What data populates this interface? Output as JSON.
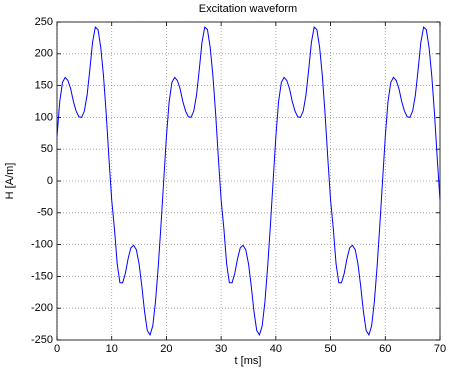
{
  "chart_data": {
    "type": "line",
    "title": "Excitation waveform",
    "x_label": "t [ms]",
    "y_label": "H [A/m]",
    "x": [
      0,
      0.5,
      1,
      1.5,
      2,
      2.5,
      3,
      3.5,
      4,
      4.5,
      5,
      5.5,
      6,
      6.5,
      7,
      7.5,
      8,
      8.5,
      9,
      9.5,
      10,
      10.5,
      11,
      11.5,
      12,
      12.5,
      13,
      13.5,
      14,
      14.5,
      15,
      15.5,
      16,
      16.5,
      17,
      17.5,
      18,
      18.5,
      19,
      19.5,
      20,
      20.5,
      21,
      21.5,
      22,
      22.5,
      23,
      23.5,
      24,
      24.5,
      25,
      25.5,
      26,
      26.5,
      27,
      27.5,
      28,
      28.5,
      29,
      29.5,
      30,
      30.5,
      31,
      31.5,
      32,
      32.5,
      33,
      33.5,
      34,
      34.5,
      35,
      35.5,
      36,
      36.5,
      37,
      37.5,
      38,
      38.5,
      39,
      39.5,
      40,
      40.5,
      41,
      41.5,
      42,
      42.5,
      43,
      43.5,
      44,
      44.5,
      45,
      45.5,
      46,
      46.5,
      47,
      47.5,
      48,
      48.5,
      49,
      49.5,
      50,
      50.5,
      51,
      51.5,
      52,
      52.5,
      53,
      53.5,
      54,
      54.5,
      55,
      55.5,
      56,
      56.5,
      57,
      57.5,
      58,
      58.5,
      59,
      59.5,
      60,
      60.5,
      61,
      61.5,
      62,
      62.5,
      63,
      63.5,
      64,
      64.5,
      65,
      65.5,
      66,
      66.5,
      67,
      67.5,
      68,
      68.5,
      69,
      69.5,
      70
    ],
    "series": [
      {
        "color": "#0000ff",
        "values": [
          70,
          125,
          155,
          163,
          158,
          145,
          125,
          110,
          101,
          100,
          110,
          135,
          175,
          218,
          242,
          238,
          210,
          165,
          105,
          35,
          -30,
          -75,
          -130,
          -160,
          -160,
          -145,
          -122,
          -105,
          -101,
          -108,
          -130,
          -165,
          -205,
          -235,
          -242,
          -228,
          -190,
          -135,
          -70,
          0,
          70,
          125,
          155,
          163,
          158,
          145,
          125,
          110,
          101,
          100,
          110,
          135,
          175,
          218,
          242,
          238,
          210,
          165,
          105,
          35,
          -30,
          -75,
          -130,
          -160,
          -160,
          -145,
          -122,
          -105,
          -101,
          -108,
          -130,
          -165,
          -205,
          -235,
          -242,
          -228,
          -190,
          -135,
          -70,
          0,
          70,
          125,
          155,
          163,
          158,
          145,
          125,
          110,
          101,
          100,
          110,
          135,
          175,
          218,
          242,
          238,
          210,
          165,
          105,
          35,
          -30,
          -75,
          -130,
          -160,
          -160,
          -145,
          -122,
          -105,
          -101,
          -108,
          -130,
          -165,
          -205,
          -235,
          -242,
          -228,
          -190,
          -135,
          -70,
          0,
          70,
          125,
          155,
          163,
          158,
          145,
          125,
          110,
          101,
          100,
          110,
          135,
          175,
          218,
          242,
          238,
          210,
          165,
          105,
          35,
          -30
        ]
      }
    ],
    "xlim": [
      0,
      70
    ],
    "ylim": [
      -250,
      250
    ],
    "xticks": [
      0,
      10,
      20,
      30,
      40,
      50,
      60,
      70
    ],
    "yticks": [
      -250,
      -200,
      -150,
      -100,
      -50,
      0,
      50,
      100,
      150,
      200,
      250
    ],
    "grid": true
  }
}
